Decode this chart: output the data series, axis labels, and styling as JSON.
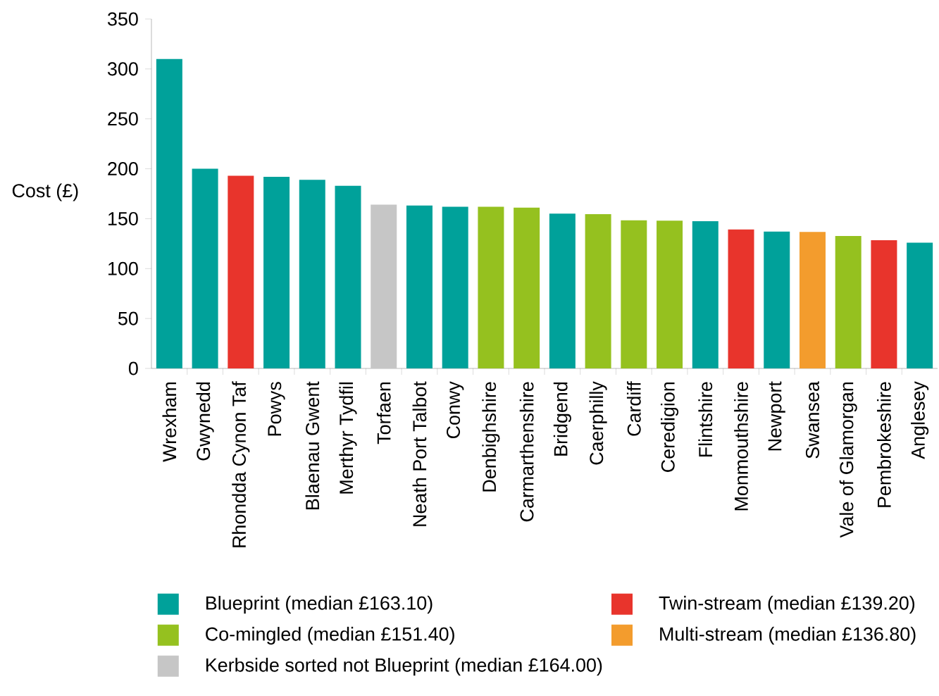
{
  "chart_data": {
    "type": "bar",
    "ylabel": "Cost (£)",
    "categories": [
      "Wrexham",
      "Gwynedd",
      "Rhondda Cynon Taf",
      "Powys",
      "Blaenau Gwent",
      "Merthyr Tydfil",
      "Torfaen",
      "Neath Port Talbot",
      "Conwy",
      "Denbighshire",
      "Carmarthenshire",
      "Bridgend",
      "Caerphilly",
      "Cardiff",
      "Ceredigion",
      "Flintshire",
      "Monmouthshire",
      "Newport",
      "Swansea",
      "Vale of Glamorgan",
      "Pembrokeshire",
      "Anglesey"
    ],
    "series": [
      {
        "name": "Blueprint (median £163.10)",
        "color": "#00a19a",
        "values": [
          310,
          200,
          null,
          192,
          189,
          183,
          null,
          163.1,
          162,
          null,
          null,
          155,
          null,
          null,
          null,
          147.5,
          null,
          137,
          null,
          null,
          null,
          126
        ]
      },
      {
        "name": "Twin-stream (median £139.20)",
        "color": "#e8342c",
        "values": [
          null,
          null,
          193,
          null,
          null,
          null,
          null,
          null,
          null,
          null,
          null,
          null,
          null,
          null,
          null,
          null,
          139.2,
          null,
          null,
          null,
          128.4,
          null
        ]
      },
      {
        "name": "Co-mingled (median £151.40)",
        "color": "#95c11f",
        "values": [
          null,
          null,
          null,
          null,
          null,
          null,
          null,
          null,
          null,
          162,
          161,
          null,
          154.5,
          148.3,
          148,
          null,
          null,
          null,
          null,
          132.7,
          null,
          null
        ]
      },
      {
        "name": "Multi-stream (median £136.80)",
        "color": "#f39c2d",
        "values": [
          null,
          null,
          null,
          null,
          null,
          null,
          null,
          null,
          null,
          null,
          null,
          null,
          null,
          null,
          null,
          null,
          null,
          null,
          136.8,
          null,
          null,
          null
        ]
      },
      {
        "name": "Kerbside sorted not Blueprint (median £164.00)",
        "color": "#c6c6c6",
        "values": [
          null,
          null,
          null,
          null,
          null,
          null,
          164,
          null,
          null,
          null,
          null,
          null,
          null,
          null,
          null,
          null,
          null,
          null,
          null,
          null,
          null,
          null
        ]
      }
    ],
    "ylim": [
      0,
      350
    ],
    "yticks": [
      0,
      50,
      100,
      150,
      200,
      250,
      300,
      350
    ],
    "grid": false,
    "legend": "bottom"
  }
}
